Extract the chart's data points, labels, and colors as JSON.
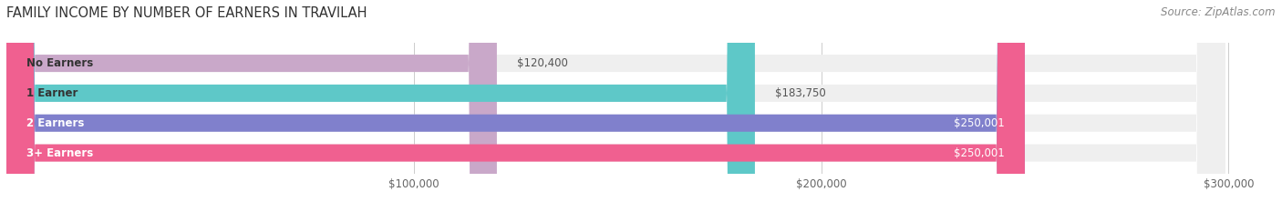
{
  "title": "FAMILY INCOME BY NUMBER OF EARNERS IN TRAVILAH",
  "source": "Source: ZipAtlas.com",
  "categories": [
    "No Earners",
    "1 Earner",
    "2 Earners",
    "3+ Earners"
  ],
  "values": [
    120400,
    183750,
    250001,
    250001
  ],
  "bar_colors": [
    "#c9a8c9",
    "#5ec8c8",
    "#8080cc",
    "#f06090"
  ],
  "bar_bg_color": "#efefef",
  "value_labels": [
    "$120,400",
    "$183,750",
    "$250,001",
    "$250,001"
  ],
  "label_inside": [
    false,
    false,
    true,
    true
  ],
  "label_colors_inside": [
    "#555555",
    "#555555",
    "#ffffff",
    "#ffffff"
  ],
  "xmin": 0,
  "xmax": 310000,
  "xticks": [
    100000,
    200000,
    300000
  ],
  "xticklabels": [
    "$100,000",
    "$200,000",
    "$300,000"
  ],
  "title_fontsize": 10.5,
  "source_fontsize": 8.5,
  "label_fontsize": 8.5,
  "category_fontsize": 8.5,
  "bar_height": 0.58,
  "bg_color": "#ffffff",
  "rounding_size": 7000,
  "cat_label_color_dark": "#333333",
  "cat_label_color_light": "#ffffff"
}
